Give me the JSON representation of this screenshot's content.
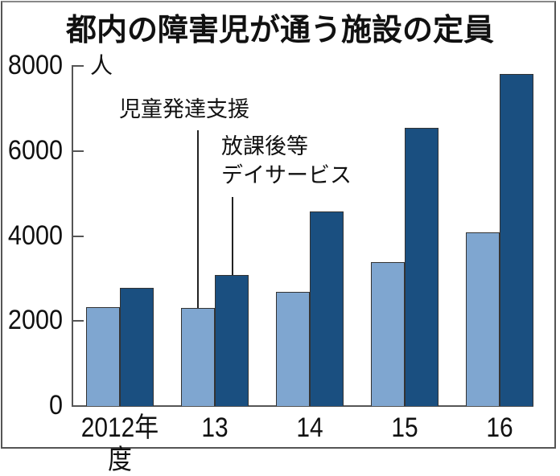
{
  "chart_data": {
    "type": "bar",
    "title": "都内の障害児が通う施設の定員",
    "unit_label": "人",
    "xlabel": "",
    "ylabel": "人",
    "ylim": [
      0,
      8000
    ],
    "yticks": [
      "0",
      "2000",
      "4000",
      "6000",
      "8000"
    ],
    "categories": [
      "2012年度",
      "13",
      "14",
      "15",
      "16"
    ],
    "series": [
      {
        "name": "児童発達支援",
        "color": "#7fa6d0",
        "values": [
          2330,
          2300,
          2690,
          3380,
          4080
        ]
      },
      {
        "name": "放課後等デイサービス",
        "color": "#1a4f80",
        "values": [
          2780,
          3090,
          4580,
          6540,
          7820
        ]
      }
    ],
    "annotations": [
      {
        "text": "児童発達支援",
        "points_to": "13 / 児童発達支援"
      },
      {
        "text_line1": "放課後等",
        "text_line2": "デイサービス",
        "points_to": "13 / 放課後等デイサービス"
      }
    ],
    "grid": false,
    "legend_position": "inline annotations"
  }
}
